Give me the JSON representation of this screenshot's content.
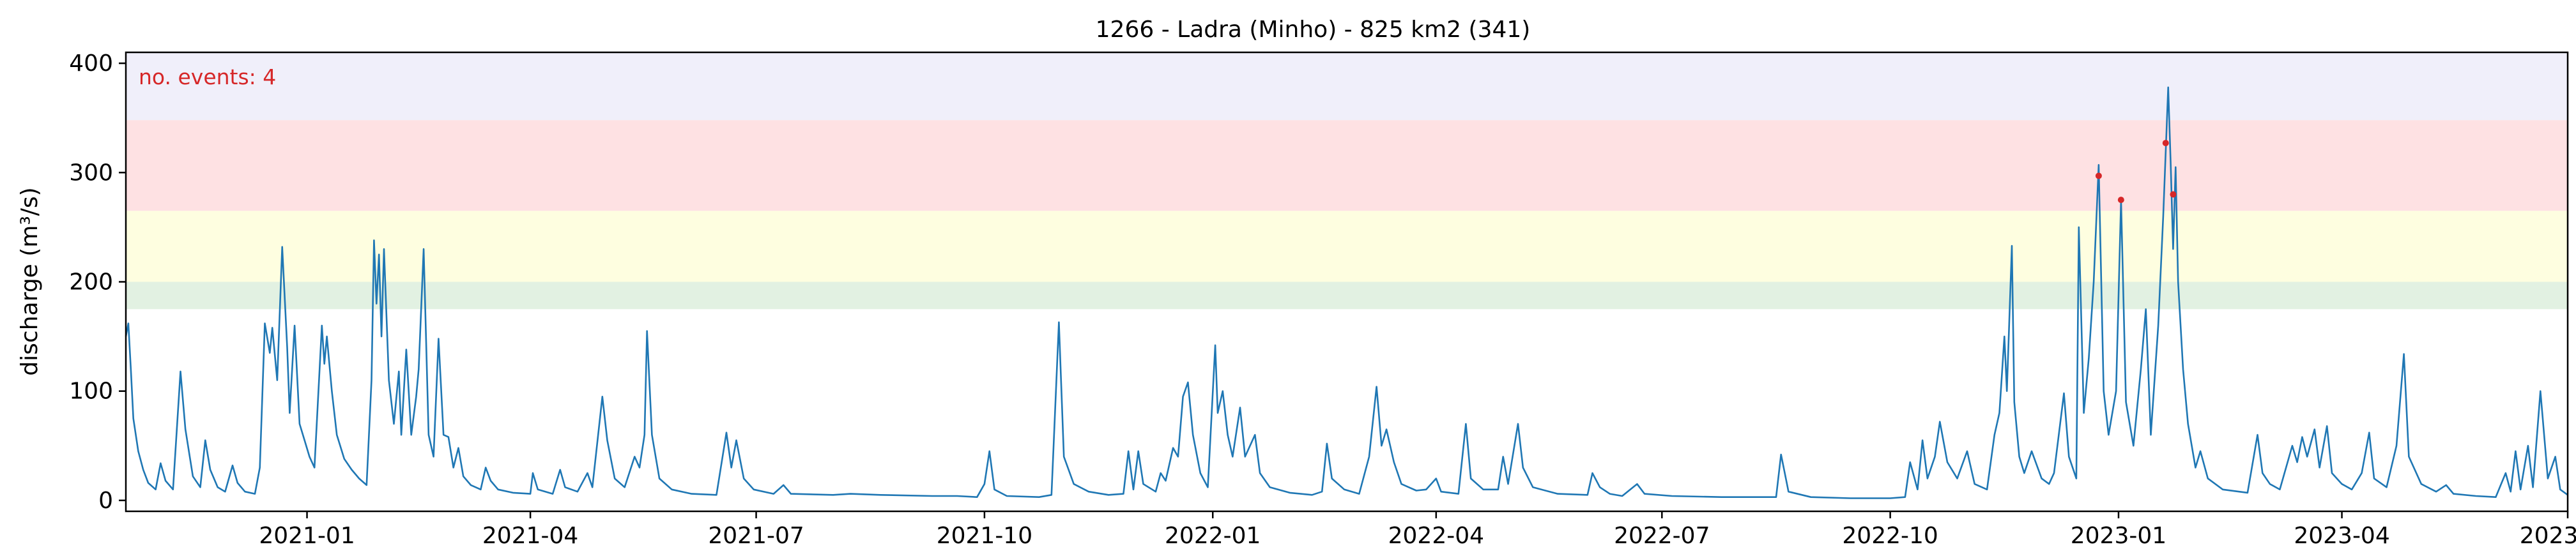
{
  "chart_data": {
    "type": "line",
    "title": "1266 - Ladra (Minho) - 825 km2 (341)",
    "xlabel": "",
    "ylabel": "discharge (m³/s)",
    "annotation": "no. events: 4",
    "x_range": [
      "2020-10-20",
      "2023-07-01"
    ],
    "ylim": [
      -10,
      410
    ],
    "x_ticks": [
      "2021-01",
      "2021-04",
      "2021-07",
      "2021-10",
      "2022-01",
      "2022-04",
      "2022-07",
      "2022-10",
      "2023-01",
      "2023-04",
      "2023-07"
    ],
    "y_ticks": [
      0,
      100,
      200,
      300,
      400
    ],
    "grid": false,
    "threshold_bands": [
      {
        "from": 175,
        "to": 200,
        "color": "#e2f1e2"
      },
      {
        "from": 200,
        "to": 265,
        "color": "#fefee0"
      },
      {
        "from": 265,
        "to": 348,
        "color": "#fee1e3"
      },
      {
        "from": 348,
        "to": 410,
        "color": "#f0effa"
      }
    ],
    "series": [
      {
        "color": "#1f77b4",
        "points": [
          [
            "2020-10-20",
            150
          ],
          [
            "2020-10-21",
            162
          ],
          [
            "2020-10-22",
            120
          ],
          [
            "2020-10-23",
            75
          ],
          [
            "2020-10-25",
            45
          ],
          [
            "2020-10-27",
            28
          ],
          [
            "2020-10-29",
            16
          ],
          [
            "2020-11-01",
            10
          ],
          [
            "2020-11-03",
            34
          ],
          [
            "2020-11-05",
            18
          ],
          [
            "2020-11-08",
            10
          ],
          [
            "2020-11-11",
            118
          ],
          [
            "2020-11-13",
            65
          ],
          [
            "2020-11-16",
            22
          ],
          [
            "2020-11-19",
            12
          ],
          [
            "2020-11-21",
            55
          ],
          [
            "2020-11-23",
            28
          ],
          [
            "2020-11-26",
            12
          ],
          [
            "2020-11-29",
            8
          ],
          [
            "2020-12-02",
            32
          ],
          [
            "2020-12-04",
            16
          ],
          [
            "2020-12-07",
            8
          ],
          [
            "2020-12-11",
            6
          ],
          [
            "2020-12-13",
            30
          ],
          [
            "2020-12-15",
            162
          ],
          [
            "2020-12-17",
            135
          ],
          [
            "2020-12-18",
            158
          ],
          [
            "2020-12-20",
            110
          ],
          [
            "2020-12-22",
            232
          ],
          [
            "2020-12-24",
            140
          ],
          [
            "2020-12-25",
            80
          ],
          [
            "2020-12-27",
            160
          ],
          [
            "2020-12-29",
            70
          ],
          [
            "2020-12-31",
            55
          ],
          [
            "2021-01-02",
            40
          ],
          [
            "2021-01-04",
            30
          ],
          [
            "2021-01-07",
            160
          ],
          [
            "2021-01-08",
            125
          ],
          [
            "2021-01-09",
            150
          ],
          [
            "2021-01-11",
            100
          ],
          [
            "2021-01-13",
            60
          ],
          [
            "2021-01-16",
            38
          ],
          [
            "2021-01-19",
            28
          ],
          [
            "2021-01-22",
            20
          ],
          [
            "2021-01-25",
            14
          ],
          [
            "2021-01-27",
            110
          ],
          [
            "2021-01-28",
            238
          ],
          [
            "2021-01-29",
            180
          ],
          [
            "2021-01-30",
            225
          ],
          [
            "2021-01-31",
            150
          ],
          [
            "2021-02-01",
            230
          ],
          [
            "2021-02-03",
            110
          ],
          [
            "2021-02-05",
            70
          ],
          [
            "2021-02-07",
            118
          ],
          [
            "2021-02-08",
            60
          ],
          [
            "2021-02-10",
            138
          ],
          [
            "2021-02-12",
            60
          ],
          [
            "2021-02-14",
            95
          ],
          [
            "2021-02-15",
            120
          ],
          [
            "2021-02-17",
            230
          ],
          [
            "2021-02-19",
            60
          ],
          [
            "2021-02-21",
            40
          ],
          [
            "2021-02-23",
            148
          ],
          [
            "2021-02-25",
            60
          ],
          [
            "2021-02-27",
            58
          ],
          [
            "2021-03-01",
            30
          ],
          [
            "2021-03-03",
            48
          ],
          [
            "2021-03-05",
            22
          ],
          [
            "2021-03-08",
            14
          ],
          [
            "2021-03-12",
            10
          ],
          [
            "2021-03-14",
            30
          ],
          [
            "2021-03-16",
            18
          ],
          [
            "2021-03-19",
            10
          ],
          [
            "2021-03-25",
            7
          ],
          [
            "2021-04-01",
            6
          ],
          [
            "2021-04-02",
            25
          ],
          [
            "2021-04-04",
            10
          ],
          [
            "2021-04-10",
            6
          ],
          [
            "2021-04-13",
            28
          ],
          [
            "2021-04-15",
            12
          ],
          [
            "2021-04-20",
            8
          ],
          [
            "2021-04-24",
            25
          ],
          [
            "2021-04-26",
            12
          ],
          [
            "2021-04-30",
            95
          ],
          [
            "2021-05-02",
            55
          ],
          [
            "2021-05-05",
            20
          ],
          [
            "2021-05-09",
            12
          ],
          [
            "2021-05-13",
            40
          ],
          [
            "2021-05-15",
            30
          ],
          [
            "2021-05-17",
            60
          ],
          [
            "2021-05-18",
            155
          ],
          [
            "2021-05-20",
            60
          ],
          [
            "2021-05-23",
            20
          ],
          [
            "2021-05-28",
            10
          ],
          [
            "2021-06-05",
            6
          ],
          [
            "2021-06-15",
            5
          ],
          [
            "2021-06-19",
            62
          ],
          [
            "2021-06-21",
            30
          ],
          [
            "2021-06-23",
            55
          ],
          [
            "2021-06-26",
            20
          ],
          [
            "2021-06-30",
            10
          ],
          [
            "2021-07-08",
            6
          ],
          [
            "2021-07-12",
            14
          ],
          [
            "2021-07-15",
            6
          ],
          [
            "2021-08-01",
            5
          ],
          [
            "2021-08-08",
            6
          ],
          [
            "2021-08-20",
            5
          ],
          [
            "2021-09-10",
            4
          ],
          [
            "2021-09-20",
            4
          ],
          [
            "2021-09-28",
            3
          ],
          [
            "2021-10-01",
            15
          ],
          [
            "2021-10-03",
            45
          ],
          [
            "2021-10-05",
            10
          ],
          [
            "2021-10-10",
            4
          ],
          [
            "2021-10-23",
            3
          ],
          [
            "2021-10-28",
            5
          ],
          [
            "2021-10-31",
            163
          ],
          [
            "2021-11-02",
            40
          ],
          [
            "2021-11-06",
            15
          ],
          [
            "2021-11-12",
            8
          ],
          [
            "2021-11-20",
            5
          ],
          [
            "2021-11-26",
            6
          ],
          [
            "2021-11-28",
            45
          ],
          [
            "2021-11-30",
            10
          ],
          [
            "2021-12-02",
            45
          ],
          [
            "2021-12-04",
            15
          ],
          [
            "2021-12-09",
            8
          ],
          [
            "2021-12-11",
            25
          ],
          [
            "2021-12-13",
            18
          ],
          [
            "2021-12-16",
            48
          ],
          [
            "2021-12-18",
            40
          ],
          [
            "2021-12-20",
            95
          ],
          [
            "2021-12-22",
            108
          ],
          [
            "2021-12-24",
            60
          ],
          [
            "2021-12-27",
            25
          ],
          [
            "2021-12-30",
            12
          ],
          [
            "2022-01-02",
            142
          ],
          [
            "2022-01-03",
            80
          ],
          [
            "2022-01-05",
            100
          ],
          [
            "2022-01-07",
            60
          ],
          [
            "2022-01-09",
            40
          ],
          [
            "2022-01-12",
            85
          ],
          [
            "2022-01-14",
            40
          ],
          [
            "2022-01-18",
            60
          ],
          [
            "2022-01-20",
            25
          ],
          [
            "2022-01-24",
            12
          ],
          [
            "2022-02-01",
            7
          ],
          [
            "2022-02-10",
            5
          ],
          [
            "2022-02-14",
            8
          ],
          [
            "2022-02-16",
            52
          ],
          [
            "2022-02-18",
            20
          ],
          [
            "2022-02-23",
            10
          ],
          [
            "2022-03-01",
            6
          ],
          [
            "2022-03-05",
            40
          ],
          [
            "2022-03-08",
            104
          ],
          [
            "2022-03-10",
            50
          ],
          [
            "2022-03-12",
            65
          ],
          [
            "2022-03-15",
            35
          ],
          [
            "2022-03-18",
            15
          ],
          [
            "2022-03-24",
            9
          ],
          [
            "2022-03-28",
            10
          ],
          [
            "2022-04-01",
            20
          ],
          [
            "2022-04-03",
            8
          ],
          [
            "2022-04-10",
            6
          ],
          [
            "2022-04-13",
            70
          ],
          [
            "2022-04-15",
            20
          ],
          [
            "2022-04-20",
            10
          ],
          [
            "2022-04-26",
            10
          ],
          [
            "2022-04-28",
            40
          ],
          [
            "2022-04-30",
            15
          ],
          [
            "2022-05-04",
            70
          ],
          [
            "2022-05-06",
            30
          ],
          [
            "2022-05-10",
            12
          ],
          [
            "2022-05-20",
            6
          ],
          [
            "2022-06-01",
            5
          ],
          [
            "2022-06-03",
            25
          ],
          [
            "2022-06-06",
            12
          ],
          [
            "2022-06-10",
            6
          ],
          [
            "2022-06-15",
            4
          ],
          [
            "2022-06-21",
            15
          ],
          [
            "2022-06-24",
            6
          ],
          [
            "2022-07-05",
            4
          ],
          [
            "2022-07-25",
            3
          ],
          [
            "2022-08-16",
            3
          ],
          [
            "2022-08-18",
            42
          ],
          [
            "2022-08-21",
            8
          ],
          [
            "2022-08-30",
            3
          ],
          [
            "2022-09-15",
            2
          ],
          [
            "2022-10-01",
            2
          ],
          [
            "2022-10-07",
            3
          ],
          [
            "2022-10-09",
            35
          ],
          [
            "2022-10-12",
            10
          ],
          [
            "2022-10-14",
            55
          ],
          [
            "2022-10-16",
            20
          ],
          [
            "2022-10-19",
            40
          ],
          [
            "2022-10-21",
            72
          ],
          [
            "2022-10-24",
            35
          ],
          [
            "2022-10-28",
            20
          ],
          [
            "2022-11-01",
            45
          ],
          [
            "2022-11-04",
            15
          ],
          [
            "2022-11-09",
            10
          ],
          [
            "2022-11-12",
            60
          ],
          [
            "2022-11-14",
            80
          ],
          [
            "2022-11-16",
            150
          ],
          [
            "2022-11-17",
            100
          ],
          [
            "2022-11-19",
            233
          ],
          [
            "2022-11-20",
            90
          ],
          [
            "2022-11-22",
            40
          ],
          [
            "2022-11-24",
            25
          ],
          [
            "2022-11-27",
            45
          ],
          [
            "2022-12-01",
            20
          ],
          [
            "2022-12-04",
            15
          ],
          [
            "2022-12-06",
            25
          ],
          [
            "2022-12-10",
            98
          ],
          [
            "2022-12-12",
            40
          ],
          [
            "2022-12-15",
            20
          ],
          [
            "2022-12-16",
            250
          ],
          [
            "2022-12-18",
            80
          ],
          [
            "2022-12-20",
            130
          ],
          [
            "2022-12-22",
            200
          ],
          [
            "2022-12-24",
            307
          ],
          [
            "2022-12-26",
            100
          ],
          [
            "2022-12-28",
            60
          ],
          [
            "2022-12-31",
            100
          ],
          [
            "2023-01-02",
            275
          ],
          [
            "2023-01-04",
            90
          ],
          [
            "2023-01-07",
            50
          ],
          [
            "2023-01-10",
            120
          ],
          [
            "2023-01-12",
            175
          ],
          [
            "2023-01-14",
            60
          ],
          [
            "2023-01-17",
            160
          ],
          [
            "2023-01-19",
            260
          ],
          [
            "2023-01-21",
            378
          ],
          [
            "2023-01-22",
            310
          ],
          [
            "2023-01-23",
            230
          ],
          [
            "2023-01-24",
            305
          ],
          [
            "2023-01-25",
            200
          ],
          [
            "2023-01-27",
            120
          ],
          [
            "2023-01-29",
            70
          ],
          [
            "2023-02-01",
            30
          ],
          [
            "2023-02-03",
            45
          ],
          [
            "2023-02-06",
            20
          ],
          [
            "2023-02-12",
            10
          ],
          [
            "2023-02-22",
            7
          ],
          [
            "2023-02-26",
            60
          ],
          [
            "2023-02-28",
            25
          ],
          [
            "2023-03-03",
            15
          ],
          [
            "2023-03-07",
            10
          ],
          [
            "2023-03-12",
            50
          ],
          [
            "2023-03-14",
            35
          ],
          [
            "2023-03-16",
            58
          ],
          [
            "2023-03-18",
            40
          ],
          [
            "2023-03-21",
            65
          ],
          [
            "2023-03-23",
            30
          ],
          [
            "2023-03-26",
            68
          ],
          [
            "2023-03-28",
            25
          ],
          [
            "2023-04-01",
            15
          ],
          [
            "2023-04-05",
            10
          ],
          [
            "2023-04-09",
            25
          ],
          [
            "2023-04-12",
            62
          ],
          [
            "2023-04-14",
            20
          ],
          [
            "2023-04-19",
            12
          ],
          [
            "2023-04-23",
            50
          ],
          [
            "2023-04-26",
            134
          ],
          [
            "2023-04-28",
            40
          ],
          [
            "2023-05-03",
            15
          ],
          [
            "2023-05-09",
            8
          ],
          [
            "2023-05-13",
            14
          ],
          [
            "2023-05-16",
            6
          ],
          [
            "2023-05-25",
            4
          ],
          [
            "2023-06-02",
            3
          ],
          [
            "2023-06-06",
            25
          ],
          [
            "2023-06-08",
            8
          ],
          [
            "2023-06-10",
            45
          ],
          [
            "2023-06-12",
            10
          ],
          [
            "2023-06-15",
            50
          ],
          [
            "2023-06-17",
            12
          ],
          [
            "2023-06-20",
            100
          ],
          [
            "2023-06-23",
            20
          ],
          [
            "2023-06-26",
            40
          ],
          [
            "2023-06-28",
            10
          ],
          [
            "2023-07-01",
            5
          ]
        ]
      }
    ],
    "events": [
      [
        "2022-12-24",
        297
      ],
      [
        "2023-01-02",
        275
      ],
      [
        "2023-01-20",
        327
      ],
      [
        "2023-01-23",
        280
      ]
    ],
    "event_color": "#d62728"
  }
}
